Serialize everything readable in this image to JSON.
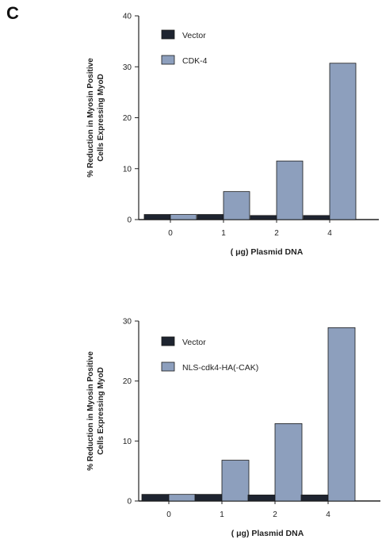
{
  "panel_label": "C",
  "colors": {
    "vector": "#1e2430",
    "treatment": "#8d9fbd",
    "axis": "#222222"
  },
  "chart_data": [
    {
      "type": "bar",
      "categories": [
        "0",
        "1",
        "2",
        "4"
      ],
      "series": [
        {
          "name": "Vector",
          "values": [
            1,
            1,
            0.8,
            0.8
          ]
        },
        {
          "name": "CDK-4",
          "values": [
            1,
            5.5,
            11.5,
            30.7
          ]
        }
      ],
      "xlabel": "( μg) Plasmid DNA",
      "ylabel_lines": [
        "% Reduction in Myosin Positive",
        "Cells Expressing MyoD"
      ],
      "ylim": [
        0,
        40
      ],
      "yticks": [
        0,
        10,
        20,
        30,
        40
      ],
      "legend": "top-left"
    },
    {
      "type": "bar",
      "categories": [
        "0",
        "1",
        "2",
        "4"
      ],
      "series": [
        {
          "name": "Vector",
          "values": [
            1.1,
            1.1,
            1.0,
            1.0
          ]
        },
        {
          "name": "NLS-cdk4-HA(-CAK)",
          "values": [
            1.1,
            6.8,
            12.9,
            28.9
          ]
        }
      ],
      "xlabel": "( μg) Plasmid DNA",
      "ylabel_lines": [
        "% Reduction in Myosin Positive",
        "Cells Expressing MyoD"
      ],
      "ylim": [
        0,
        30
      ],
      "yticks": [
        0,
        10,
        20,
        30
      ],
      "legend": "top-left"
    }
  ]
}
